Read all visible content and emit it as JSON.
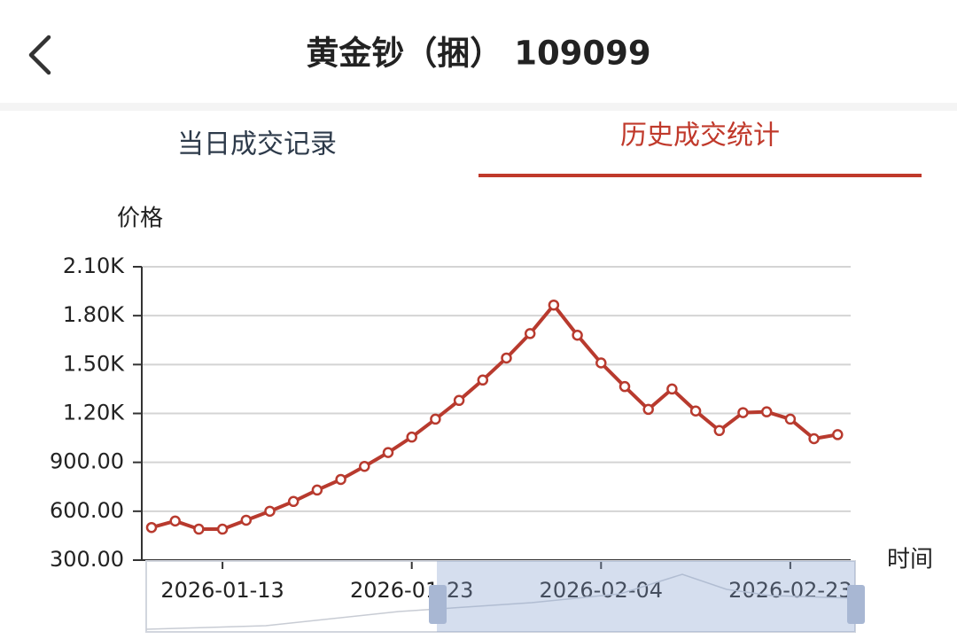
{
  "header": {
    "title": "黄金钞（捆） 109099"
  },
  "tabs": [
    "当日成交记录",
    "历史成交统计"
  ],
  "chart_data": {
    "type": "line",
    "y_label": "价格",
    "x_label": "时间",
    "categories": [
      null,
      null,
      null,
      "2026-01-13",
      null,
      null,
      null,
      null,
      null,
      null,
      null,
      "2026-01-23",
      null,
      null,
      null,
      null,
      null,
      null,
      null,
      "2026-02-04",
      null,
      null,
      null,
      null,
      null,
      null,
      null,
      "2026-02-23",
      null,
      null
    ],
    "series": [
      {
        "color": "#b83a2e",
        "values": [
          500,
          540,
          490,
          490,
          545,
          600,
          660,
          730,
          795,
          875,
          960,
          1055,
          1165,
          1280,
          1405,
          1540,
          1690,
          1865,
          1680,
          1510,
          1365,
          1225,
          1350,
          1215,
          1095,
          1205,
          1210,
          1165,
          1045,
          1070
        ]
      }
    ],
    "ylim": [
      300,
      2100
    ],
    "yticks": [
      {
        "value": 300,
        "label": "300.00"
      },
      {
        "value": 600,
        "label": "600.00"
      },
      {
        "value": 900,
        "label": "900.00"
      },
      {
        "value": 1200,
        "label": "1.20K"
      },
      {
        "value": 1500,
        "label": "1.50K"
      },
      {
        "value": 1800,
        "label": "1.80K"
      },
      {
        "value": 2100,
        "label": "2.10K"
      }
    ],
    "grid": true
  }
}
